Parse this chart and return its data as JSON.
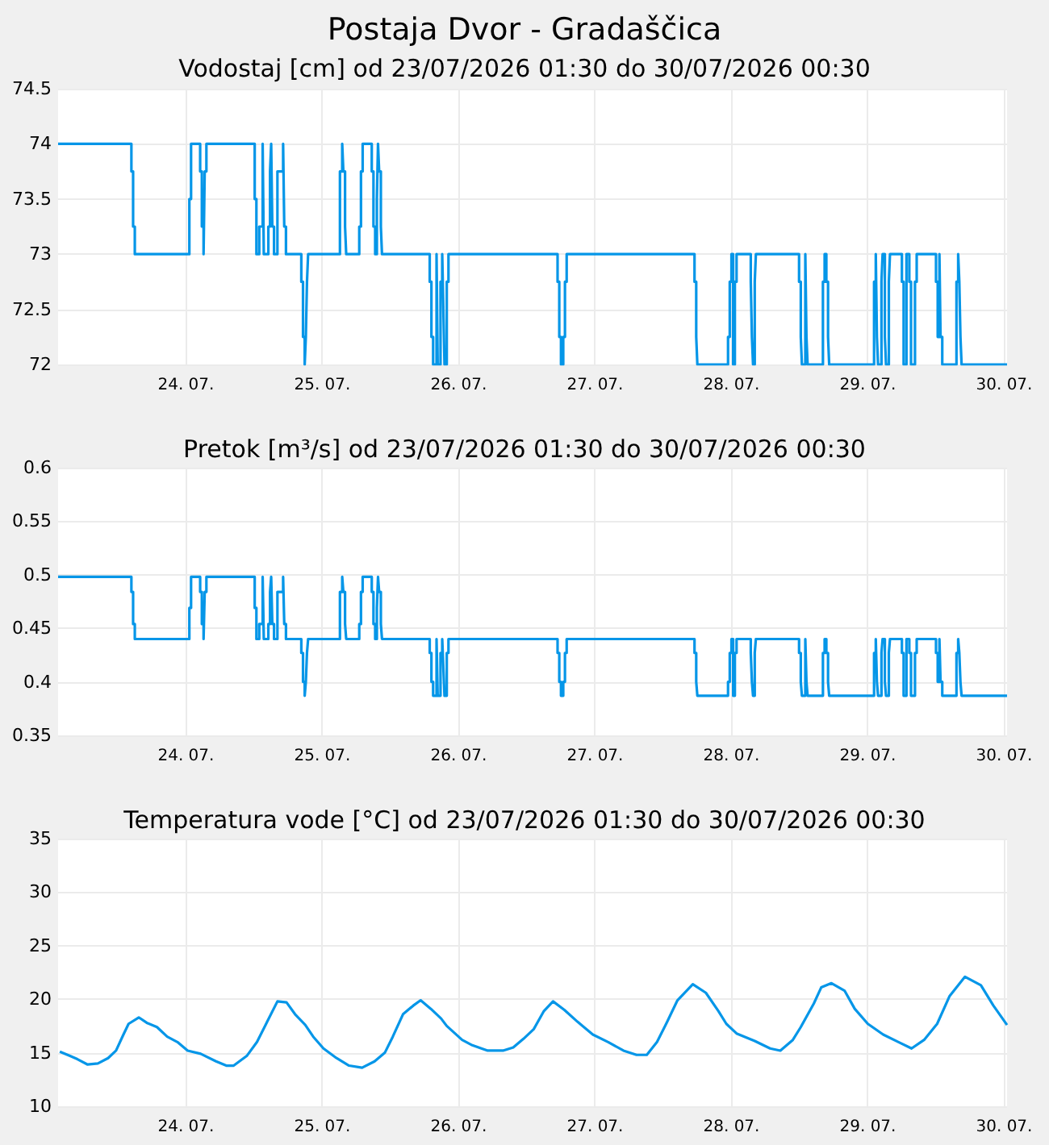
{
  "chart_data": [
    {
      "type": "step",
      "title": "Postaja Dvor - Gradaščica",
      "subtitle": "Vodostaj [cm] od 23/07/2026 01:30 do 30/07/2026 00:30",
      "color": "#0596e8",
      "grid": true,
      "marker": "none",
      "x": [
        "2026-07-23T01:30",
        "2026-07-23T14:24",
        "2026-07-23T14:42",
        "2026-07-23T15:00",
        "2026-07-24T00:36",
        "2026-07-24T00:54",
        "2026-07-24T02:30",
        "2026-07-24T02:48",
        "2026-07-24T03:06",
        "2026-07-24T03:18",
        "2026-07-24T03:36",
        "2026-07-24T12:06",
        "2026-07-24T12:24",
        "2026-07-24T12:54",
        "2026-07-24T13:30",
        "2026-07-24T13:42",
        "2026-07-24T14:30",
        "2026-07-24T14:48",
        "2026-07-24T15:00",
        "2026-07-24T15:12",
        "2026-07-24T15:30",
        "2026-07-24T16:06",
        "2026-07-24T17:06",
        "2026-07-24T17:18",
        "2026-07-24T17:36",
        "2026-07-24T20:18",
        "2026-07-24T20:36",
        "2026-07-24T20:54",
        "2026-07-24T21:06",
        "2026-07-24T21:18",
        "2026-07-24T21:30",
        "2026-07-25T03:06",
        "2026-07-25T03:30",
        "2026-07-25T03:42",
        "2026-07-25T04:00",
        "2026-07-25T04:12",
        "2026-07-25T06:30",
        "2026-07-25T06:48",
        "2026-07-25T07:06",
        "2026-07-25T08:42",
        "2026-07-25T09:00",
        "2026-07-25T09:18",
        "2026-07-25T09:36",
        "2026-07-25T09:48",
        "2026-07-25T10:00",
        "2026-07-25T10:18",
        "2026-07-25T10:30",
        "2026-07-25T18:54",
        "2026-07-25T19:12",
        "2026-07-25T19:30",
        "2026-07-25T20:06",
        "2026-07-25T20:18",
        "2026-07-25T20:48",
        "2026-07-25T21:06",
        "2026-07-25T21:18",
        "2026-07-25T21:30",
        "2026-07-25T21:54",
        "2026-07-25T22:12",
        "2026-07-26T17:24",
        "2026-07-26T17:42",
        "2026-07-26T18:00",
        "2026-07-26T18:24",
        "2026-07-26T18:42",
        "2026-07-26T19:00",
        "2026-07-27T17:30",
        "2026-07-27T17:48",
        "2026-07-27T18:00",
        "2026-07-27T23:24",
        "2026-07-27T23:42",
        "2026-07-28T00:00",
        "2026-07-28T00:18",
        "2026-07-28T00:36",
        "2026-07-28T00:54",
        "2026-07-28T03:24",
        "2026-07-28T03:36",
        "2026-07-28T03:48",
        "2026-07-28T04:06",
        "2026-07-28T04:18",
        "2026-07-28T11:54",
        "2026-07-28T12:12",
        "2026-07-28T12:24",
        "2026-07-28T13:00",
        "2026-07-28T13:12",
        "2026-07-28T13:24",
        "2026-07-28T16:06",
        "2026-07-28T16:24",
        "2026-07-28T16:42",
        "2026-07-28T17:00",
        "2026-07-28T17:12",
        "2026-07-29T01:06",
        "2026-07-29T01:24",
        "2026-07-29T01:36",
        "2026-07-29T01:48",
        "2026-07-29T02:24",
        "2026-07-29T02:36",
        "2026-07-29T03:00",
        "2026-07-29T03:12",
        "2026-07-29T03:42",
        "2026-07-29T03:54",
        "2026-07-29T06:00",
        "2026-07-29T06:18",
        "2026-07-29T06:48",
        "2026-07-29T07:18",
        "2026-07-29T07:36",
        "2026-07-29T08:18",
        "2026-07-29T08:36",
        "2026-07-29T12:00",
        "2026-07-29T12:18",
        "2026-07-29T12:36",
        "2026-07-29T12:48",
        "2026-07-29T13:06",
        "2026-07-29T15:36",
        "2026-07-29T15:54",
        "2026-07-29T16:06",
        "2026-07-29T16:18",
        "2026-07-29T16:30",
        "2026-07-30T00:30"
      ],
      "values": [
        74,
        73.75,
        73.25,
        73,
        73.5,
        74,
        73.75,
        73.25,
        73,
        73.75,
        74,
        73.5,
        73,
        73.25,
        74,
        73,
        73.25,
        73.75,
        74,
        73.25,
        73,
        73.75,
        74,
        73.25,
        73,
        72.75,
        72.25,
        72,
        72.25,
        72.75,
        73,
        73.75,
        74,
        73.75,
        73.25,
        73,
        73.25,
        73.75,
        74,
        73.75,
        73.25,
        73,
        73.5,
        74,
        73.75,
        73.25,
        73,
        72.75,
        72.25,
        72,
        73,
        72,
        72.75,
        73,
        72.5,
        72,
        72.75,
        73,
        72.75,
        72.25,
        72,
        72.25,
        72.75,
        73,
        72.75,
        72.25,
        72,
        72.25,
        72.75,
        73,
        72,
        72.75,
        73,
        72.75,
        72.25,
        72,
        72.75,
        73,
        72.75,
        72.25,
        72,
        73,
        72.25,
        72,
        72.75,
        73,
        72.75,
        72.25,
        72,
        72.75,
        73,
        72.25,
        72,
        72.75,
        73,
        72.25,
        72,
        72.75,
        73,
        72.75,
        72,
        73,
        72.75,
        72,
        72.75,
        73,
        72.75,
        72.25,
        73,
        72.25,
        72,
        72.75,
        73,
        72.75,
        72.25,
        72,
        72
      ],
      "xlim": [
        "2026-07-23T01:30",
        "2026-07-30T00:30"
      ],
      "xticks": [
        {
          "value": "2026-07-24T00:00",
          "label": "24. 07."
        },
        {
          "value": "2026-07-25T00:00",
          "label": "25. 07."
        },
        {
          "value": "2026-07-26T00:00",
          "label": "26. 07."
        },
        {
          "value": "2026-07-27T00:00",
          "label": "27. 07."
        },
        {
          "value": "2026-07-28T00:00",
          "label": "28. 07."
        },
        {
          "value": "2026-07-29T00:00",
          "label": "29. 07."
        },
        {
          "value": "2026-07-30T00:00",
          "label": "30. 07."
        }
      ],
      "ylim": [
        72,
        74.5
      ],
      "yticks": [
        72,
        72.5,
        73,
        73.5,
        74,
        74.5
      ]
    },
    {
      "type": "step",
      "title": "Pretok [m³/s] od 23/07/2026 01:30 do 30/07/2026 00:30",
      "color": "#0596e8",
      "grid": true,
      "marker": "none",
      "x": [
        "2026-07-23T01:30",
        "2026-07-23T14:24",
        "2026-07-23T14:42",
        "2026-07-23T15:00",
        "2026-07-24T00:36",
        "2026-07-24T00:54",
        "2026-07-24T02:30",
        "2026-07-24T02:48",
        "2026-07-24T03:06",
        "2026-07-24T03:18",
        "2026-07-24T03:36",
        "2026-07-24T12:06",
        "2026-07-24T12:24",
        "2026-07-24T12:54",
        "2026-07-24T13:30",
        "2026-07-24T13:42",
        "2026-07-24T14:30",
        "2026-07-24T14:48",
        "2026-07-24T15:00",
        "2026-07-24T15:12",
        "2026-07-24T15:30",
        "2026-07-24T16:06",
        "2026-07-24T17:06",
        "2026-07-24T17:18",
        "2026-07-24T17:36",
        "2026-07-24T20:18",
        "2026-07-24T20:36",
        "2026-07-24T20:54",
        "2026-07-24T21:06",
        "2026-07-24T21:18",
        "2026-07-24T21:30",
        "2026-07-25T03:06",
        "2026-07-25T03:30",
        "2026-07-25T03:42",
        "2026-07-25T04:00",
        "2026-07-25T04:12",
        "2026-07-25T06:30",
        "2026-07-25T06:48",
        "2026-07-25T07:06",
        "2026-07-25T08:42",
        "2026-07-25T09:00",
        "2026-07-25T09:18",
        "2026-07-25T09:36",
        "2026-07-25T09:48",
        "2026-07-25T10:00",
        "2026-07-25T10:18",
        "2026-07-25T10:30",
        "2026-07-25T18:54",
        "2026-07-25T19:12",
        "2026-07-25T19:30",
        "2026-07-25T20:06",
        "2026-07-25T20:18",
        "2026-07-25T20:48",
        "2026-07-25T21:06",
        "2026-07-25T21:18",
        "2026-07-25T21:30",
        "2026-07-25T21:54",
        "2026-07-25T22:12",
        "2026-07-26T17:24",
        "2026-07-26T17:42",
        "2026-07-26T18:00",
        "2026-07-26T18:24",
        "2026-07-26T18:42",
        "2026-07-26T19:00",
        "2026-07-27T17:30",
        "2026-07-27T17:48",
        "2026-07-27T18:00",
        "2026-07-27T23:24",
        "2026-07-27T23:42",
        "2026-07-28T00:00",
        "2026-07-28T00:18",
        "2026-07-28T00:36",
        "2026-07-28T00:54",
        "2026-07-28T03:24",
        "2026-07-28T03:36",
        "2026-07-28T03:48",
        "2026-07-28T04:06",
        "2026-07-28T04:18",
        "2026-07-28T11:54",
        "2026-07-28T12:12",
        "2026-07-28T12:24",
        "2026-07-28T13:00",
        "2026-07-28T13:12",
        "2026-07-28T13:24",
        "2026-07-28T16:06",
        "2026-07-28T16:24",
        "2026-07-28T16:42",
        "2026-07-28T17:00",
        "2026-07-28T17:12",
        "2026-07-29T01:06",
        "2026-07-29T01:24",
        "2026-07-29T01:36",
        "2026-07-29T01:48",
        "2026-07-29T02:24",
        "2026-07-29T02:36",
        "2026-07-29T03:00",
        "2026-07-29T03:12",
        "2026-07-29T03:42",
        "2026-07-29T03:54",
        "2026-07-29T06:00",
        "2026-07-29T06:18",
        "2026-07-29T06:48",
        "2026-07-29T07:18",
        "2026-07-29T07:36",
        "2026-07-29T08:18",
        "2026-07-29T08:36",
        "2026-07-29T12:00",
        "2026-07-29T12:18",
        "2026-07-29T12:36",
        "2026-07-29T12:48",
        "2026-07-29T13:06",
        "2026-07-29T15:36",
        "2026-07-29T15:54",
        "2026-07-29T16:06",
        "2026-07-29T16:18",
        "2026-07-29T16:30",
        "2026-07-30T00:30"
      ],
      "values": [
        0.498,
        0.484,
        0.454,
        0.44,
        0.469,
        0.498,
        0.484,
        0.454,
        0.44,
        0.484,
        0.498,
        0.469,
        0.44,
        0.454,
        0.498,
        0.44,
        0.454,
        0.484,
        0.498,
        0.454,
        0.44,
        0.484,
        0.498,
        0.454,
        0.44,
        0.427,
        0.4,
        0.387,
        0.4,
        0.427,
        0.44,
        0.484,
        0.498,
        0.484,
        0.454,
        0.44,
        0.454,
        0.484,
        0.498,
        0.484,
        0.454,
        0.44,
        0.469,
        0.498,
        0.484,
        0.454,
        0.44,
        0.427,
        0.4,
        0.387,
        0.44,
        0.387,
        0.427,
        0.44,
        0.413,
        0.387,
        0.427,
        0.44,
        0.427,
        0.4,
        0.387,
        0.4,
        0.427,
        0.44,
        0.427,
        0.4,
        0.387,
        0.4,
        0.427,
        0.44,
        0.387,
        0.427,
        0.44,
        0.427,
        0.4,
        0.387,
        0.427,
        0.44,
        0.427,
        0.4,
        0.387,
        0.44,
        0.4,
        0.387,
        0.427,
        0.44,
        0.427,
        0.4,
        0.387,
        0.427,
        0.44,
        0.4,
        0.387,
        0.427,
        0.44,
        0.4,
        0.387,
        0.427,
        0.44,
        0.427,
        0.387,
        0.44,
        0.427,
        0.387,
        0.427,
        0.44,
        0.427,
        0.4,
        0.44,
        0.4,
        0.387,
        0.427,
        0.44,
        0.427,
        0.4,
        0.387,
        0.387
      ],
      "xlim": [
        "2026-07-23T01:30",
        "2026-07-30T00:30"
      ],
      "xticks": [
        {
          "value": "2026-07-24T00:00",
          "label": "24. 07."
        },
        {
          "value": "2026-07-25T00:00",
          "label": "25. 07."
        },
        {
          "value": "2026-07-26T00:00",
          "label": "26. 07."
        },
        {
          "value": "2026-07-27T00:00",
          "label": "27. 07."
        },
        {
          "value": "2026-07-28T00:00",
          "label": "28. 07."
        },
        {
          "value": "2026-07-29T00:00",
          "label": "29. 07."
        },
        {
          "value": "2026-07-30T00:00",
          "label": "30. 07."
        }
      ],
      "ylim": [
        0.35,
        0.6
      ],
      "yticks": [
        0.35,
        0.4,
        0.45,
        0.5,
        0.55,
        0.6
      ]
    },
    {
      "type": "line",
      "title": "Temperatura vode [°C] od 23/07/2026 01:30 do 30/07/2026 00:30",
      "color": "#0596e8",
      "grid": true,
      "marker": "none",
      "x": [
        "2026-07-23T01:48",
        "2026-07-23T03:36",
        "2026-07-23T04:54",
        "2026-07-23T06:42",
        "2026-07-23T08:30",
        "2026-07-23T10:18",
        "2026-07-23T11:42",
        "2026-07-23T13:00",
        "2026-07-23T13:54",
        "2026-07-23T15:42",
        "2026-07-23T17:06",
        "2026-07-23T18:54",
        "2026-07-23T20:42",
        "2026-07-23T22:30",
        "2026-07-24T00:18",
        "2026-07-24T02:36",
        "2026-07-24T05:18",
        "2026-07-24T07:06",
        "2026-07-24T08:24",
        "2026-07-24T10:42",
        "2026-07-24T12:30",
        "2026-07-24T14:18",
        "2026-07-24T16:06",
        "2026-07-24T17:42",
        "2026-07-24T19:12",
        "2026-07-24T21:00",
        "2026-07-24T22:24",
        "2026-07-25T00:12",
        "2026-07-25T02:30",
        "2026-07-25T04:42",
        "2026-07-25T07:00",
        "2026-07-25T09:12",
        "2026-07-25T11:00",
        "2026-07-25T12:24",
        "2026-07-25T14:12",
        "2026-07-25T16:00",
        "2026-07-25T17:18",
        "2026-07-25T19:06",
        "2026-07-25T20:54",
        "2026-07-25T21:54",
        "2026-07-26T00:36",
        "2026-07-26T02:24",
        "2026-07-26T05:06",
        "2026-07-26T07:48",
        "2026-07-26T09:36",
        "2026-07-26T11:24",
        "2026-07-26T13:12",
        "2026-07-26T15:00",
        "2026-07-26T16:36",
        "2026-07-26T18:36",
        "2026-07-26T20:54",
        "2026-07-26T23:36",
        "2026-07-27T02:18",
        "2026-07-27T05:00",
        "2026-07-27T07:18",
        "2026-07-27T09:06",
        "2026-07-27T10:54",
        "2026-07-27T12:42",
        "2026-07-27T14:30",
        "2026-07-27T17:12",
        "2026-07-27T19:30",
        "2026-07-27T21:42",
        "2026-07-27T23:06",
        "2026-07-28T00:54",
        "2026-07-28T04:06",
        "2026-07-28T06:48",
        "2026-07-28T08:36",
        "2026-07-28T10:48",
        "2026-07-28T12:12",
        "2026-07-28T14:30",
        "2026-07-28T15:48",
        "2026-07-28T17:36",
        "2026-07-28T19:54",
        "2026-07-28T21:42",
        "2026-07-29T00:00",
        "2026-07-29T02:42",
        "2026-07-29T05:24",
        "2026-07-29T07:42",
        "2026-07-29T09:54",
        "2026-07-29T12:12",
        "2026-07-29T14:24",
        "2026-07-29T17:06",
        "2026-07-29T19:54",
        "2026-07-29T22:06",
        "2026-07-30T00:30"
      ],
      "values": [
        15.1,
        14.7,
        14.4,
        13.9,
        14.0,
        14.5,
        15.2,
        16.7,
        17.7,
        18.3,
        17.8,
        17.4,
        16.5,
        16.0,
        15.2,
        14.9,
        14.2,
        13.8,
        13.8,
        14.7,
        16.0,
        17.9,
        19.8,
        19.7,
        18.6,
        17.6,
        16.5,
        15.4,
        14.5,
        13.8,
        13.6,
        14.2,
        15.0,
        16.5,
        18.6,
        19.4,
        19.9,
        19.1,
        18.2,
        17.5,
        16.2,
        15.7,
        15.2,
        15.2,
        15.5,
        16.3,
        17.2,
        18.9,
        19.8,
        19.0,
        17.9,
        16.7,
        16.0,
        15.2,
        14.8,
        14.8,
        16.0,
        17.9,
        19.9,
        21.4,
        20.6,
        18.9,
        17.7,
        16.8,
        16.1,
        15.4,
        15.2,
        16.2,
        17.4,
        19.6,
        21.1,
        21.5,
        20.8,
        19.1,
        17.7,
        16.7,
        16.0,
        15.4,
        16.2,
        17.7,
        20.3,
        22.1,
        21.3,
        19.4,
        17.6
      ],
      "xlim": [
        "2026-07-23T01:30",
        "2026-07-30T00:30"
      ],
      "xticks": [
        {
          "value": "2026-07-24T00:00",
          "label": "24. 07."
        },
        {
          "value": "2026-07-25T00:00",
          "label": "25. 07."
        },
        {
          "value": "2026-07-26T00:00",
          "label": "26. 07."
        },
        {
          "value": "2026-07-27T00:00",
          "label": "27. 07."
        },
        {
          "value": "2026-07-28T00:00",
          "label": "28. 07."
        },
        {
          "value": "2026-07-29T00:00",
          "label": "29. 07."
        },
        {
          "value": "2026-07-30T00:00",
          "label": "30. 07."
        }
      ],
      "ylim": [
        10,
        35
      ],
      "yticks": [
        10,
        15,
        20,
        25,
        30,
        35
      ]
    }
  ]
}
